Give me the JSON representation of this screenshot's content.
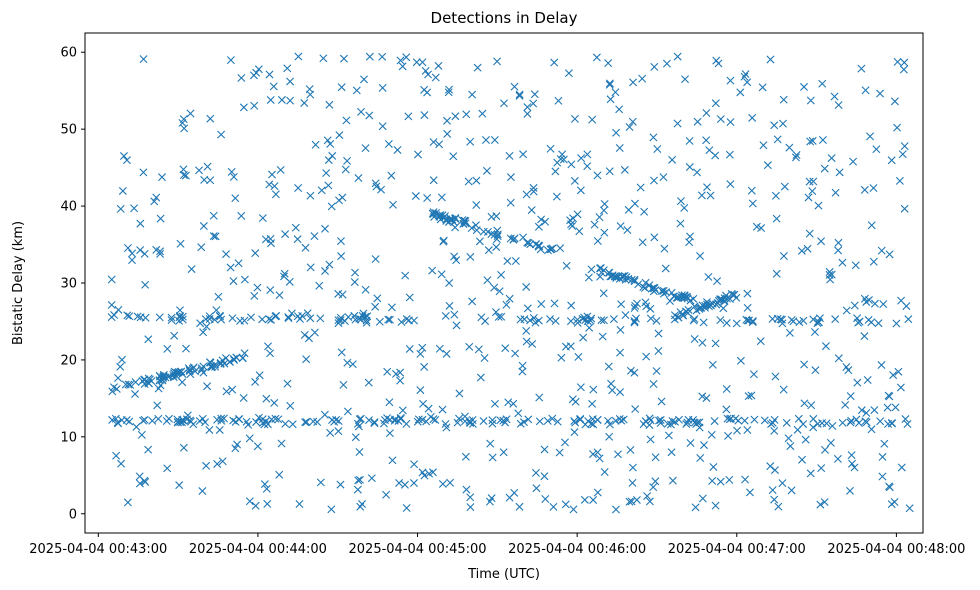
{
  "chart_data": {
    "type": "scatter",
    "title": "Detections in Delay",
    "xlabel": "Time (UTC)",
    "ylabel": "Bistatic Delay (km)",
    "marker": "x",
    "color": "#1f77b4",
    "grid": false,
    "xlim": [
      "2025-04-04 00:42:55",
      "2025-04-04 00:48:10"
    ],
    "ylim": [
      -2.5,
      62.5
    ],
    "xticks": [
      "2025-04-04 00:43:00",
      "2025-04-04 00:44:00",
      "2025-04-04 00:45:00",
      "2025-04-04 00:46:00",
      "2025-04-04 00:47:00",
      "2025-04-04 00:48:00"
    ],
    "yticks": [
      0,
      10,
      20,
      30,
      40,
      50,
      60
    ],
    "tracks": [
      {
        "time_start": "2025-04-04 00:43:05",
        "time_end": "2025-04-04 00:43:55",
        "delay_start": 16,
        "delay_end": 20.5,
        "points": 70
      },
      {
        "time_start": "2025-04-04 00:45:05",
        "time_end": "2025-04-04 00:45:55",
        "delay_start": 39,
        "delay_end": 34,
        "points": 55
      },
      {
        "time_start": "2025-04-04 00:46:05",
        "time_end": "2025-04-04 00:46:45",
        "delay_start": 32,
        "delay_end": 27.5,
        "points": 55
      },
      {
        "time_start": "2025-04-04 00:46:35",
        "time_end": "2025-04-04 00:47:00",
        "delay_start": 25.5,
        "delay_end": 28.5,
        "points": 40
      },
      {
        "time_start": "2025-04-04 00:43:05",
        "time_end": "2025-04-04 00:48:05",
        "delay_start": 12,
        "delay_end": 12,
        "points": 160
      },
      {
        "time_start": "2025-04-04 00:43:05",
        "time_end": "2025-04-04 00:48:05",
        "delay_start": 25.5,
        "delay_end": 25,
        "points": 110
      }
    ],
    "scatter_background": {
      "time_start": "2025-04-04 00:43:05",
      "time_end": "2025-04-04 00:48:05",
      "delay_min": 0.5,
      "delay_max": 59.5,
      "points": 780
    }
  }
}
